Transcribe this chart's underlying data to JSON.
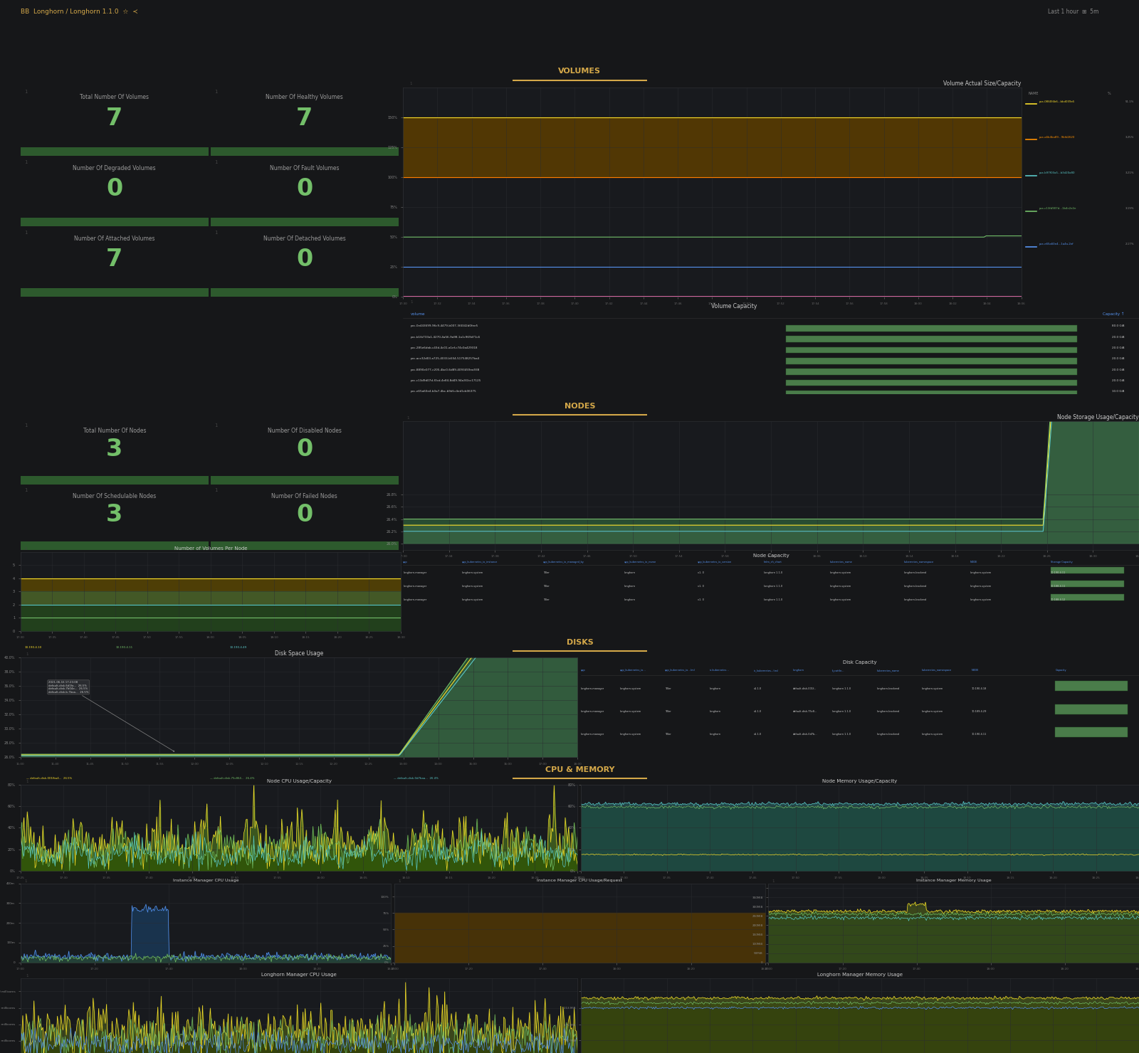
{
  "bg_color": "#161719",
  "panel_bg": "#1c1e21",
  "panel_border": "#2c2e32",
  "text_color": "#d8d9da",
  "title_color": "#cccccc",
  "green_color": "#73bf69",
  "orange_color": "#ff9830",
  "sidebar_color": "#111217",
  "header_color": "#111217",
  "section_title_color": "#d4a849",
  "section_underline": "#d4a849",
  "stat_bar_color": "#2d5a2d",
  "volumes_section": "VOLUMES",
  "nodes_section": "NODES",
  "disks_section": "DISKS",
  "cpu_memory_section": "CPU & MEMORY",
  "panels_volumes": [
    {
      "title": "Total Number Of Volumes",
      "value": "7",
      "color": "#73bf69",
      "bar_color": "#2d5a2d"
    },
    {
      "title": "Number Of Healthy Volumes",
      "value": "7",
      "color": "#73bf69",
      "bar_color": "#2d5a2d"
    },
    {
      "title": "Number Of Degraded Volumes",
      "value": "0",
      "color": "#73bf69",
      "bar_color": "#2d5a2d"
    },
    {
      "title": "Number Of Fault Volumes",
      "value": "0",
      "color": "#73bf69",
      "bar_color": "#2d5a2d"
    },
    {
      "title": "Number Of Attached Volumes",
      "value": "7",
      "color": "#73bf69",
      "bar_color": "#2d5a2d"
    },
    {
      "title": "Number Of Detached Volumes",
      "value": "0",
      "color": "#73bf69",
      "bar_color": "#2d5a2d"
    }
  ],
  "panels_nodes": [
    {
      "title": "Total Number Of Nodes",
      "value": "3",
      "color": "#73bf69"
    },
    {
      "title": "Number Of Disabled Nodes",
      "value": "0",
      "color": "#73bf69"
    },
    {
      "title": "Number Of Schedulable Nodes",
      "value": "3",
      "color": "#73bf69"
    },
    {
      "title": "Number Of Failed Nodes",
      "value": "0",
      "color": "#73bf69"
    }
  ],
  "volume_capacity_rows": [
    {
      "name": "pvc-0e443699-96c9-4479-b007-3f4342d0fee5",
      "capacity": "80.0 GiB",
      "pct": 0.99
    },
    {
      "name": "pvc-b1fb733a1-4270-4a56-9a98-1a1c969d71c6",
      "capacity": "20.0 GiB",
      "pct": 0.99
    },
    {
      "name": "pvc-285e6dab-c43d-4c01-a1ef-c74c0a429318",
      "capacity": "20.0 GiB",
      "pct": 0.99
    },
    {
      "name": "pvc-acc32d03-a725-4033-b554-517548257ba4",
      "capacity": "20.0 GiB",
      "pct": 0.99
    },
    {
      "name": "pvc-8890e077-c205-4bc0-6d89-4093459ea938",
      "capacity": "20.0 GiB",
      "pct": 0.99
    },
    {
      "name": "pvc-c13d9d07d-f3cd-4e84-8d49-94a3f2cc17125",
      "capacity": "20.0 GiB",
      "pct": 0.99
    },
    {
      "name": "pvc-e65a60e4-b0a7-4bc-b9df-c4ed1cb06375",
      "capacity": "10.0 GiB",
      "pct": 0.99
    }
  ]
}
